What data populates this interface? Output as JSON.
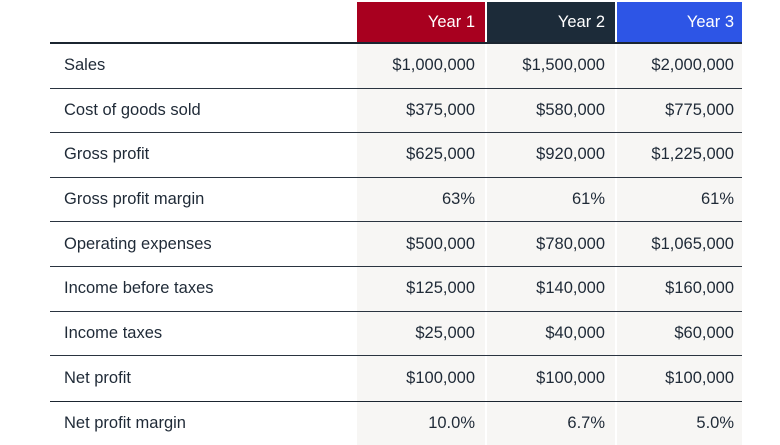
{
  "header": {
    "columns": [
      {
        "label": "Year 1",
        "color": "#a8001f"
      },
      {
        "label": "Year 2",
        "color": "#1c2b39"
      },
      {
        "label": "Year 3",
        "color": "#2d55e6"
      }
    ]
  },
  "rows": [
    {
      "label": "Sales",
      "values": [
        "$1,000,000",
        "$1,500,000",
        "$2,000,000"
      ]
    },
    {
      "label": "Cost of goods sold",
      "values": [
        "$375,000",
        "$580,000",
        "$775,000"
      ]
    },
    {
      "label": "Gross profit",
      "values": [
        "$625,000",
        "$920,000",
        "$1,225,000"
      ]
    },
    {
      "label": "Gross profit margin",
      "values": [
        "63%",
        "61%",
        "61%"
      ]
    },
    {
      "label": "Operating expenses",
      "values": [
        "$500,000",
        "$780,000",
        "$1,065,000"
      ]
    },
    {
      "label": "Income before taxes",
      "values": [
        "$125,000",
        "$140,000",
        "$160,000"
      ]
    },
    {
      "label": "Income taxes",
      "values": [
        "$25,000",
        "$40,000",
        "$60,000"
      ]
    },
    {
      "label": "Net profit",
      "values": [
        "$100,000",
        "$100,000",
        "$100,000"
      ]
    },
    {
      "label": "Net profit margin",
      "values": [
        "10.0%",
        "6.7%",
        "5.0%"
      ]
    }
  ]
}
